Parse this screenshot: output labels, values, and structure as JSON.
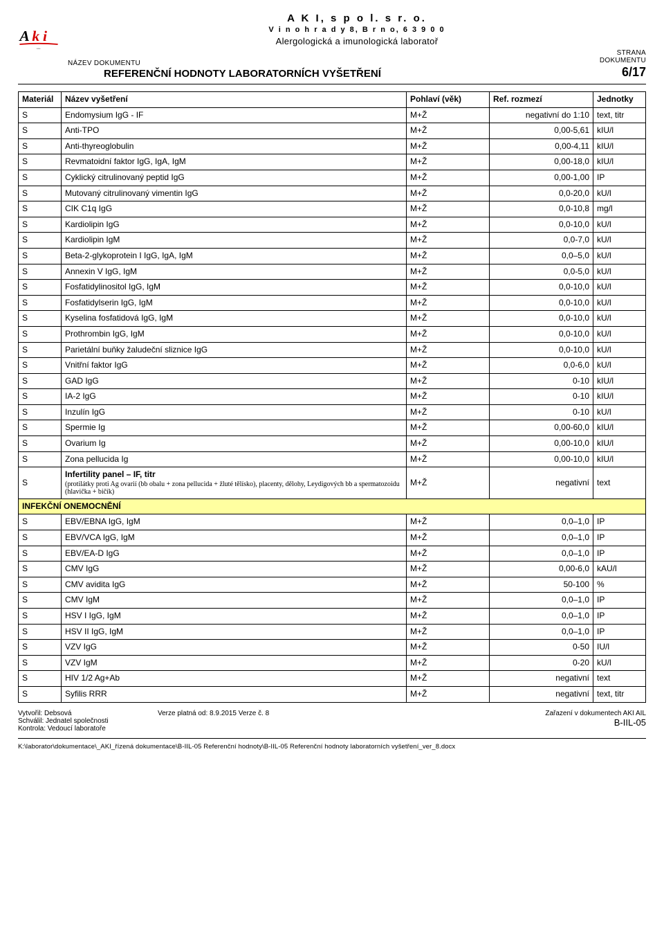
{
  "header": {
    "org_name": "A K I,  s p o l.  s  r.  o.",
    "org_addr": "V i n o h r a d y  8,  B r n o,  6 3 9  0 0",
    "org_sub": "Alergologická a imunologická laboratoř",
    "doc_label": "NÁZEV DOKUMENTU",
    "doc_title": "REFERENČNÍ HODNOTY LABORATORNÍCH VYŠETŘENÍ",
    "page_label1": "STRANA",
    "page_label2": "DOKUMENTU",
    "page_num": "6/17"
  },
  "table": {
    "headers": {
      "material": "Materiál",
      "name": "Název vyšetření",
      "sex": "Pohlaví (věk)",
      "ref": "Ref. rozmezí",
      "unit": "Jednotky"
    },
    "rows": [
      {
        "m": "S",
        "n": "Endomysium IgG - IF",
        "s": "M+Ž",
        "r": "negativní do 1:10",
        "u": "text, titr"
      },
      {
        "m": "S",
        "n": "Anti-TPO",
        "s": "M+Ž",
        "r": "0,00-5,61",
        "u": "kIU/l"
      },
      {
        "m": "S",
        "n": "Anti-thyreoglobulin",
        "s": "M+Ž",
        "r": "0,00-4,11",
        "u": "kIU/l"
      },
      {
        "m": "S",
        "n": "Revmatoidní faktor IgG, IgA, IgM",
        "s": "M+Ž",
        "r": "0,00-18,0",
        "u": "kIU/l"
      },
      {
        "m": "S",
        "n": "Cyklický citrulinovaný peptid IgG",
        "s": "M+Ž",
        "r": "0,00-1,00",
        "u": "IP"
      },
      {
        "m": "S",
        "n": "Mutovaný citrulinovaný vimentin IgG",
        "s": "M+Ž",
        "r": "0,0-20,0",
        "u": "kU/l"
      },
      {
        "m": "S",
        "n": "CIK C1q IgG",
        "s": "M+Ž",
        "r": "0,0-10,8",
        "u": "mg/l"
      },
      {
        "m": "S",
        "n": "Kardiolipin IgG",
        "s": "M+Ž",
        "r": "0,0-10,0",
        "u": "kU/l"
      },
      {
        "m": "S",
        "n": "Kardiolipin IgM",
        "s": "M+Ž",
        "r": "0,0-7,0",
        "u": "kU/l"
      },
      {
        "m": "S",
        "n": "Beta-2-glykoprotein I IgG, IgA, IgM",
        "s": "M+Ž",
        "r": "0,0–5,0",
        "u": "kU/l"
      },
      {
        "m": "S",
        "n": "Annexin V IgG, IgM",
        "s": "M+Ž",
        "r": "0,0-5,0",
        "u": "kU/l"
      },
      {
        "m": "S",
        "n": "Fosfatidylinositol IgG, IgM",
        "s": "M+Ž",
        "r": "0,0-10,0",
        "u": "kU/l"
      },
      {
        "m": "S",
        "n": "Fosfatidylserin IgG, IgM",
        "s": "M+Ž",
        "r": "0,0-10,0",
        "u": "kU/l"
      },
      {
        "m": "S",
        "n": "Kyselina fosfatidová IgG, IgM",
        "s": "M+Ž",
        "r": "0,0-10,0",
        "u": "kU/l"
      },
      {
        "m": "S",
        "n": "Prothrombin IgG, IgM",
        "s": "M+Ž",
        "r": "0,0-10,0",
        "u": "kU/l"
      },
      {
        "m": "S",
        "n": "Parietální buňky žaludeční sliznice IgG",
        "s": "M+Ž",
        "r": "0,0-10,0",
        "u": "kU/l"
      },
      {
        "m": "S",
        "n": "Vnitřní faktor IgG",
        "s": "M+Ž",
        "r": "0,0-6,0",
        "u": "kU/l"
      },
      {
        "m": "S",
        "n": "GAD IgG",
        "s": "M+Ž",
        "r": "0-10",
        "u": "kIU/l"
      },
      {
        "m": "S",
        "n": "IA-2 IgG",
        "s": "M+Ž",
        "r": "0-10",
        "u": "kIU/l"
      },
      {
        "m": "S",
        "n": "Inzulín IgG",
        "s": "M+Ž",
        "r": "0-10",
        "u": "kU/l"
      },
      {
        "m": "S",
        "n": "Spermie Ig",
        "s": "M+Ž",
        "r": "0,00-60,0",
        "u": "kIU/l"
      },
      {
        "m": "S",
        "n": "Ovarium Ig",
        "s": "M+Ž",
        "r": "0,00-10,0",
        "u": "kIU/l"
      },
      {
        "m": "S",
        "n": "Zona pellucida Ig",
        "s": "M+Ž",
        "r": "0,00-10,0",
        "u": "kIU/l"
      },
      {
        "m": "S",
        "multi": {
          "title": "Infertility panel – IF, titr",
          "sub": "(protilátky proti Ag ovarií (bb obalu + zona pellucida + žluté tělísko), placenty, dělohy, Leydigových bb a spermatozoidu (hlavička + bičík)"
        },
        "s": "M+Ž",
        "r": "negativní",
        "u": "text"
      },
      {
        "section": "INFEKČNÍ ONEMOCNĚNÍ"
      },
      {
        "m": "S",
        "n": "EBV/EBNA IgG, IgM",
        "s": "M+Ž",
        "r": "0,0–1,0",
        "u": "IP"
      },
      {
        "m": "S",
        "n": "EBV/VCA IgG, IgM",
        "s": "M+Ž",
        "r": "0,0–1,0",
        "u": "IP"
      },
      {
        "m": "S",
        "n": "EBV/EA-D IgG",
        "s": "M+Ž",
        "r": "0,0–1,0",
        "u": "IP"
      },
      {
        "m": "S",
        "n": "CMV IgG",
        "s": "M+Ž",
        "r": "0,00-6,0",
        "u": "kAU/l"
      },
      {
        "m": "S",
        "n": "CMV avidita IgG",
        "s": "M+Ž",
        "r": "50-100",
        "u": "%"
      },
      {
        "m": "S",
        "n": "CMV IgM",
        "s": "M+Ž",
        "r": "0,0–1,0",
        "u": "IP"
      },
      {
        "m": "S",
        "n": "HSV I IgG, IgM",
        "s": "M+Ž",
        "r": "0,0–1,0",
        "u": "IP"
      },
      {
        "m": "S",
        "n": "HSV II IgG, IgM",
        "s": "M+Ž",
        "r": "0,0–1,0",
        "u": "IP"
      },
      {
        "m": "S",
        "n": "VZV  IgG",
        "s": "M+Ž",
        "r": "0-50",
        "u": "IU/l"
      },
      {
        "m": "S",
        "n": "VZV  IgM",
        "s": "M+Ž",
        "r": "0-20",
        "u": "kU/l"
      },
      {
        "m": "S",
        "n": "HIV 1/2 Ag+Ab",
        "s": "M+Ž",
        "r": "negativní",
        "u": "text"
      },
      {
        "m": "S",
        "n": "Syfilis RRR",
        "s": "M+Ž",
        "r": "negativní",
        "u": "text, titr"
      }
    ]
  },
  "footer": {
    "left1": "Vytvořil: Debsová",
    "left2": "Schválil: Jednatel společnosti",
    "left3": "Kontrola: Vedoucí laboratoře",
    "mid": "Verze platná od: 8.9.2015     Verze č. 8",
    "right1": "Zařazení v dokumentech AKI AIL",
    "right2": "B-IIL-05",
    "filepath": "K:\\laborator\\dokumentace\\_AKI_řízená dokumentace\\B-IIL-05 Referenční hodnoty\\B-IIL-05 Referenční hodnoty laboratorních vyšetření_ver_8.docx"
  }
}
